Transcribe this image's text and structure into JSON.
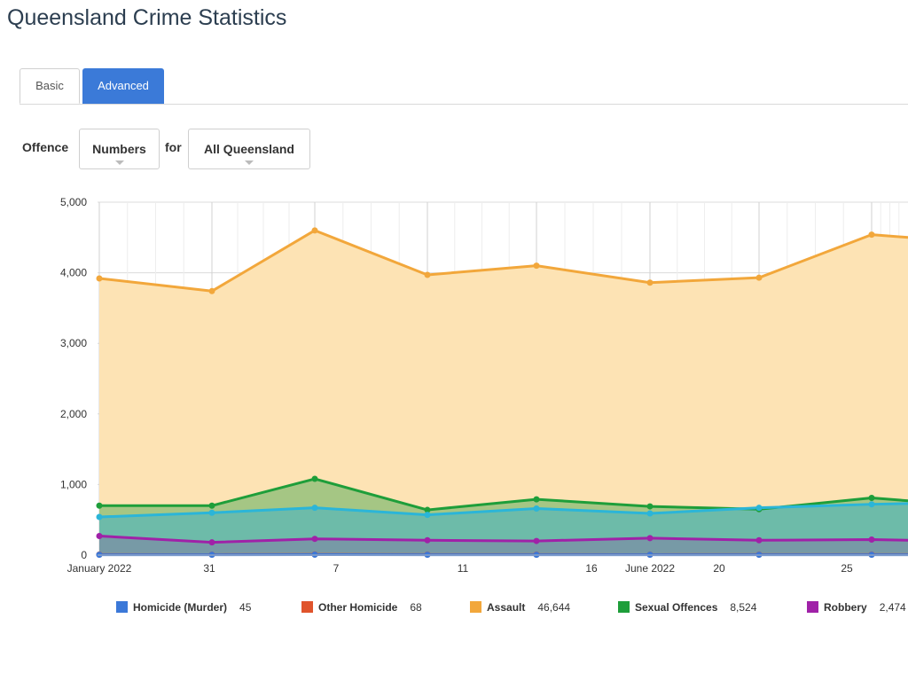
{
  "page": {
    "title": "Queensland Crime Statistics"
  },
  "tabs": [
    {
      "label": "Basic"
    },
    {
      "label": "Advanced"
    }
  ],
  "filters": {
    "offence_label": "Offence",
    "offence_value": "Numbers",
    "for_label": "for",
    "region_value": "All Queensland"
  },
  "chart_data": {
    "type": "area",
    "ylim": [
      0,
      5000
    ],
    "yticks": [
      "0",
      "1,000",
      "2,000",
      "3,000",
      "4,000",
      "5,000"
    ],
    "ytick_values": [
      0,
      1000,
      2000,
      3000,
      4000,
      5000
    ],
    "xtick_labels": [
      "January 2022",
      "31",
      "7",
      "11",
      "16",
      "June 2022",
      "20",
      "25"
    ],
    "grid": true,
    "series": [
      {
        "name": "Homicide (Murder)",
        "total": "45",
        "color": "#3b78d8",
        "values": [
          5,
          4,
          6,
          5,
          4,
          5,
          5,
          4,
          4
        ]
      },
      {
        "name": "Other Homicide",
        "total": "68",
        "color": "#e0542c",
        "values": [
          8,
          7,
          9,
          8,
          8,
          7,
          8,
          8,
          8
        ]
      },
      {
        "name": "Assault",
        "total": "46,644",
        "color": "#f2a73b",
        "values": [
          3920,
          3740,
          4600,
          3970,
          4100,
          3860,
          3930,
          4540,
          4500
        ]
      },
      {
        "name": "Sexual Offences",
        "total": "8,524",
        "color": "#1e9e3a",
        "values": [
          700,
          700,
          1080,
          640,
          790,
          690,
          650,
          810,
          770
        ]
      },
      {
        "name": "Robbery",
        "total": "2,474",
        "color": "#a021a8",
        "values": [
          270,
          180,
          230,
          210,
          200,
          240,
          210,
          220,
          210
        ]
      },
      {
        "name": "",
        "color": "#2bb5d8",
        "values": [
          540,
          600,
          670,
          570,
          660,
          590,
          670,
          720,
          730
        ]
      }
    ]
  }
}
